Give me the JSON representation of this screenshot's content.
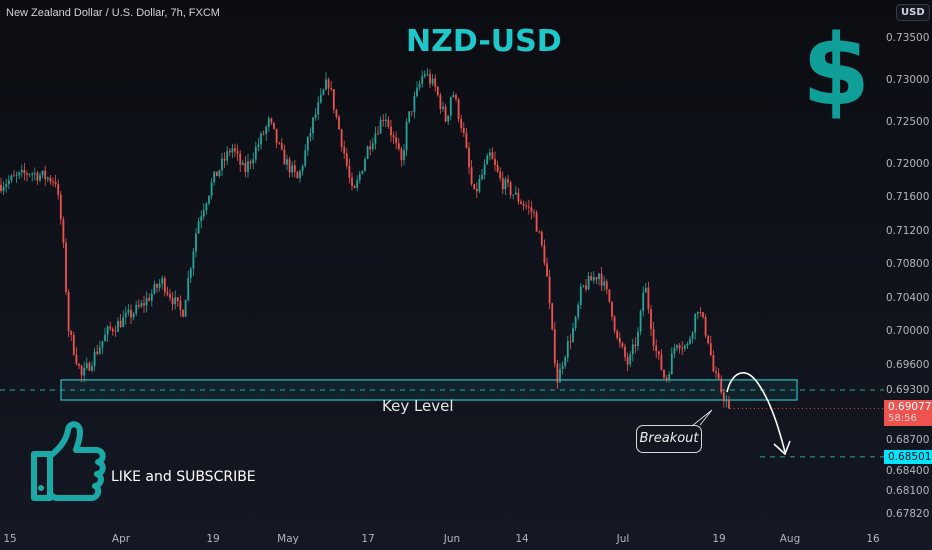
{
  "header": {
    "symbol": "New Zealand Dollar / U.S. Dollar, 7h, FXCM",
    "currency": "USD"
  },
  "annotations": {
    "title": "NZD-USD",
    "dollar_symbol": "$",
    "key_level": "Key Level",
    "breakout": "Breakout",
    "cta": "LIKE and SUBSCRIBE"
  },
  "colors": {
    "background": "#131722",
    "up": "#26a69a",
    "down": "#ef5350",
    "title": "#1ec8c8",
    "zone": "#28c0c0",
    "last_price": "#ef5350",
    "target": "#00e5ff"
  },
  "icons": {
    "thumbs": "thumbs-up-icon",
    "arrow": "curved-arrow-icon"
  },
  "price_labels": {
    "last": "0.69077",
    "countdown": "58:56",
    "target": "0.68501"
  },
  "chart_data": {
    "type": "candlestick",
    "title": "NZD-USD",
    "y_ticks": [
      "0.73500",
      "0.73000",
      "0.72500",
      "0.72000",
      "0.71600",
      "0.71200",
      "0.70800",
      "0.70400",
      "0.70000",
      "0.69600",
      "0.69300",
      "0.68700",
      "0.68400",
      "0.68100",
      "0.67820"
    ],
    "x_ticks": [
      "15",
      "Apr",
      "19",
      "May",
      "17",
      "Jun",
      "14",
      "Jul",
      "19",
      "Aug",
      "16"
    ],
    "ylim": [
      0.6775,
      0.7365
    ],
    "key_level_zone": [
      0.6918,
      0.6942
    ],
    "key_level_line": 0.693,
    "target_line": 0.68501,
    "last_price": 0.69077,
    "approx_close_path": [
      {
        "date": "2021-03-13",
        "close": 0.7175
      },
      {
        "date": "2021-03-18",
        "close": 0.719
      },
      {
        "date": "2021-03-22",
        "close": 0.718
      },
      {
        "date": "2021-03-23",
        "close": 0.712
      },
      {
        "date": "2021-03-24",
        "close": 0.7
      },
      {
        "date": "2021-03-26",
        "close": 0.6945
      },
      {
        "date": "2021-03-30",
        "close": 0.7
      },
      {
        "date": "2021-04-05",
        "close": 0.703
      },
      {
        "date": "2021-04-09",
        "close": 0.706
      },
      {
        "date": "2021-04-13",
        "close": 0.702
      },
      {
        "date": "2021-04-16",
        "close": 0.713
      },
      {
        "date": "2021-04-19",
        "close": 0.718
      },
      {
        "date": "2021-04-22",
        "close": 0.722
      },
      {
        "date": "2021-04-24",
        "close": 0.719
      },
      {
        "date": "2021-04-28",
        "close": 0.725
      },
      {
        "date": "2021-04-30",
        "close": 0.721
      },
      {
        "date": "2021-05-03",
        "close": 0.718
      },
      {
        "date": "2021-05-06",
        "close": 0.725
      },
      {
        "date": "2021-05-09",
        "close": 0.73
      },
      {
        "date": "2021-05-12",
        "close": 0.722
      },
      {
        "date": "2021-05-14",
        "close": 0.716
      },
      {
        "date": "2021-05-17",
        "close": 0.722
      },
      {
        "date": "2021-05-20",
        "close": 0.726
      },
      {
        "date": "2021-05-23",
        "close": 0.72
      },
      {
        "date": "2021-05-24",
        "close": 0.725
      },
      {
        "date": "2021-05-27",
        "close": 0.731
      },
      {
        "date": "2021-05-29",
        "close": 0.729
      },
      {
        "date": "2021-05-31",
        "close": 0.725
      },
      {
        "date": "2021-06-01",
        "close": 0.729
      },
      {
        "date": "2021-06-03",
        "close": 0.724
      },
      {
        "date": "2021-06-05",
        "close": 0.716
      },
      {
        "date": "2021-06-08",
        "close": 0.721
      },
      {
        "date": "2021-06-10",
        "close": 0.718
      },
      {
        "date": "2021-06-13",
        "close": 0.716
      },
      {
        "date": "2021-06-16",
        "close": 0.714
      },
      {
        "date": "2021-06-18",
        "close": 0.708
      },
      {
        "date": "2021-06-19",
        "close": 0.7
      },
      {
        "date": "2021-06-20",
        "close": 0.694
      },
      {
        "date": "2021-06-21",
        "close": 0.697
      },
      {
        "date": "2021-06-23",
        "close": 0.701
      },
      {
        "date": "2021-06-24",
        "close": 0.705
      },
      {
        "date": "2021-06-27",
        "close": 0.707
      },
      {
        "date": "2021-06-29",
        "close": 0.703
      },
      {
        "date": "2021-06-30",
        "close": 0.699
      },
      {
        "date": "2021-07-02",
        "close": 0.696
      },
      {
        "date": "2021-07-04",
        "close": 0.7
      },
      {
        "date": "2021-07-05",
        "close": 0.706
      },
      {
        "date": "2021-07-07",
        "close": 0.698
      },
      {
        "date": "2021-07-09",
        "close": 0.694
      },
      {
        "date": "2021-07-11",
        "close": 0.699
      },
      {
        "date": "2021-07-13",
        "close": 0.698
      },
      {
        "date": "2021-07-15",
        "close": 0.703
      },
      {
        "date": "2021-07-17",
        "close": 0.699
      },
      {
        "date": "2021-07-18",
        "close": 0.695
      },
      {
        "date": "2021-07-20",
        "close": 0.692
      },
      {
        "date": "2021-07-21",
        "close": 0.69077
      }
    ]
  }
}
